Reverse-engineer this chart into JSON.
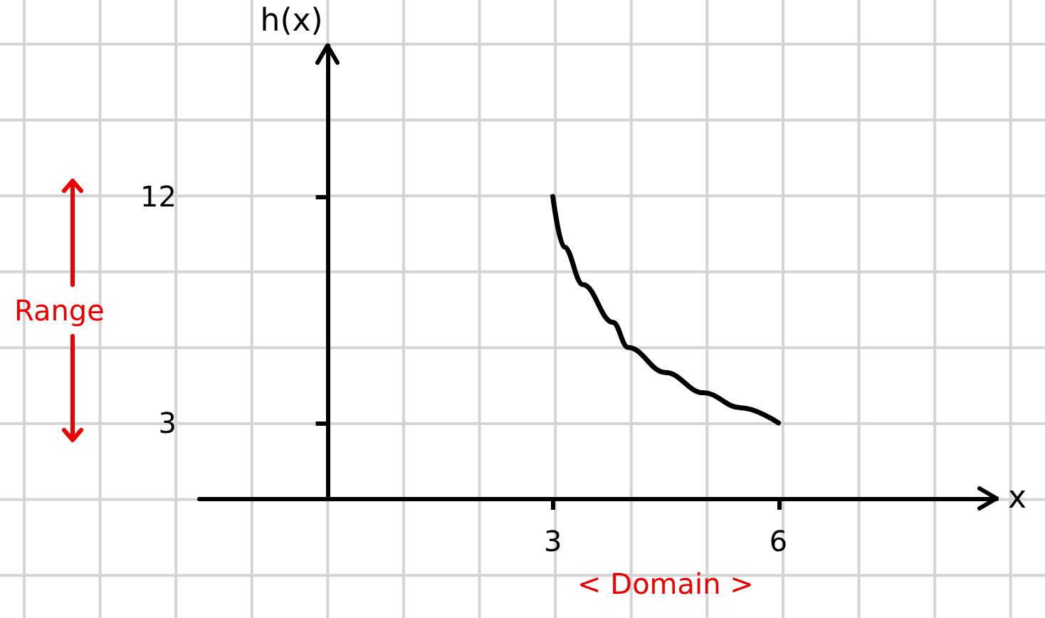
{
  "chart_data": {
    "type": "line",
    "xlabel": "x",
    "ylabel": "h(x)",
    "x": [
      3,
      3.15,
      3.4,
      3.8,
      4,
      4.5,
      5,
      5.5,
      6
    ],
    "series": [
      {
        "color": "#000000",
        "values": [
          12,
          10,
          8.5,
          7,
          6,
          5,
          4.2,
          3.6,
          3
        ]
      }
    ],
    "xlim": [
      -1.7,
      8.9
    ],
    "ylim": [
      0,
      18
    ],
    "xticks": [
      3,
      6
    ],
    "yticks": [
      3,
      12
    ],
    "annotations": [
      "Range",
      "< Domain >"
    ],
    "grid": false,
    "marker": "none",
    "line_style": "solid"
  }
}
